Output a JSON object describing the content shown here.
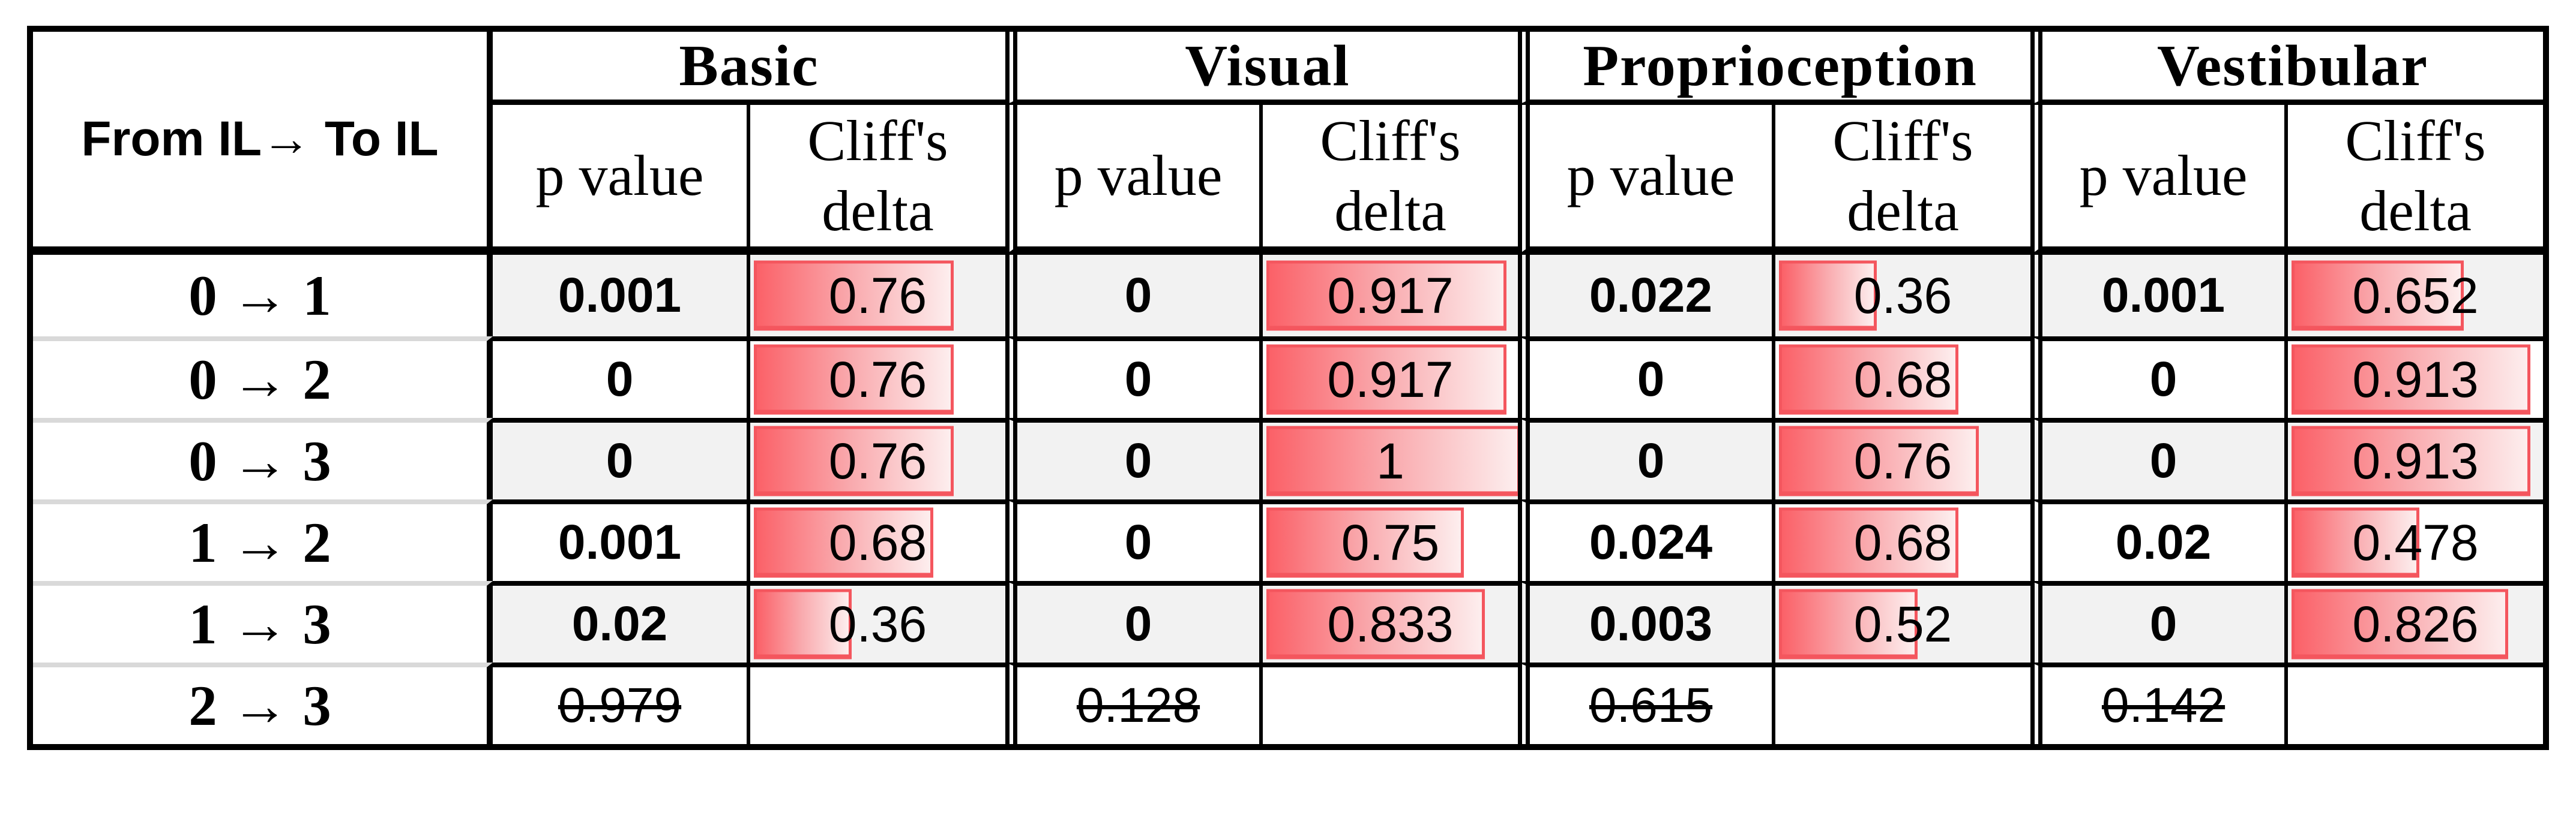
{
  "colors": {
    "black": "#000000",
    "row-alt": "#f2f2f2",
    "label-sep": "#d9d9d9",
    "bar-border": "#f4565e",
    "bar-grad-start": "#fb6168",
    "bar-grad-mid": "#f9a9ad",
    "bar-grad-end": "#fdeeee"
  },
  "table": {
    "corner_header": "From IL→ To IL",
    "groups": [
      {
        "label": "Basic"
      },
      {
        "label": "Visual"
      },
      {
        "label": "Proprioception"
      },
      {
        "label": "Vestibular"
      }
    ],
    "subheader_p": "p value",
    "subheader_delta_line1": "Cliff's",
    "subheader_delta_line2": "delta",
    "rows": [
      {
        "label": "0 → 1",
        "cells": [
          {
            "p": "0.001",
            "significant": true,
            "delta": 0.76,
            "delta_text": "0.76"
          },
          {
            "p": "0",
            "significant": true,
            "delta": 0.917,
            "delta_text": "0.917"
          },
          {
            "p": "0.022",
            "significant": true,
            "delta": 0.36,
            "delta_text": "0.36"
          },
          {
            "p": "0.001",
            "significant": true,
            "delta": 0.652,
            "delta_text": "0.652"
          }
        ]
      },
      {
        "label": "0 → 2",
        "cells": [
          {
            "p": "0",
            "significant": true,
            "delta": 0.76,
            "delta_text": "0.76"
          },
          {
            "p": "0",
            "significant": true,
            "delta": 0.917,
            "delta_text": "0.917"
          },
          {
            "p": "0",
            "significant": true,
            "delta": 0.68,
            "delta_text": "0.68"
          },
          {
            "p": "0",
            "significant": true,
            "delta": 0.913,
            "delta_text": "0.913"
          }
        ]
      },
      {
        "label": "0 → 3",
        "cells": [
          {
            "p": "0",
            "significant": true,
            "delta": 0.76,
            "delta_text": "0.76"
          },
          {
            "p": "0",
            "significant": true,
            "delta": 1,
            "delta_text": "1"
          },
          {
            "p": "0",
            "significant": true,
            "delta": 0.76,
            "delta_text": "0.76"
          },
          {
            "p": "0",
            "significant": true,
            "delta": 0.913,
            "delta_text": "0.913"
          }
        ]
      },
      {
        "label": "1 → 2",
        "cells": [
          {
            "p": "0.001",
            "significant": true,
            "delta": 0.68,
            "delta_text": "0.68"
          },
          {
            "p": "0",
            "significant": true,
            "delta": 0.75,
            "delta_text": "0.75"
          },
          {
            "p": "0.024",
            "significant": true,
            "delta": 0.68,
            "delta_text": "0.68"
          },
          {
            "p": "0.02",
            "significant": true,
            "delta": 0.478,
            "delta_text": "0.478"
          }
        ]
      },
      {
        "label": "1 → 3",
        "cells": [
          {
            "p": "0.02",
            "significant": true,
            "delta": 0.36,
            "delta_text": "0.36"
          },
          {
            "p": "0",
            "significant": true,
            "delta": 0.833,
            "delta_text": "0.833"
          },
          {
            "p": "0.003",
            "significant": true,
            "delta": 0.52,
            "delta_text": "0.52"
          },
          {
            "p": "0",
            "significant": true,
            "delta": 0.826,
            "delta_text": "0.826"
          }
        ]
      },
      {
        "label": "2 → 3",
        "cells": [
          {
            "p": "0.979",
            "significant": false,
            "delta_text": ""
          },
          {
            "p": "0.128",
            "significant": false,
            "delta_text": ""
          },
          {
            "p": "0.615",
            "significant": false,
            "delta_text": ""
          },
          {
            "p": "0.142",
            "significant": false,
            "delta_text": ""
          }
        ]
      }
    ]
  }
}
